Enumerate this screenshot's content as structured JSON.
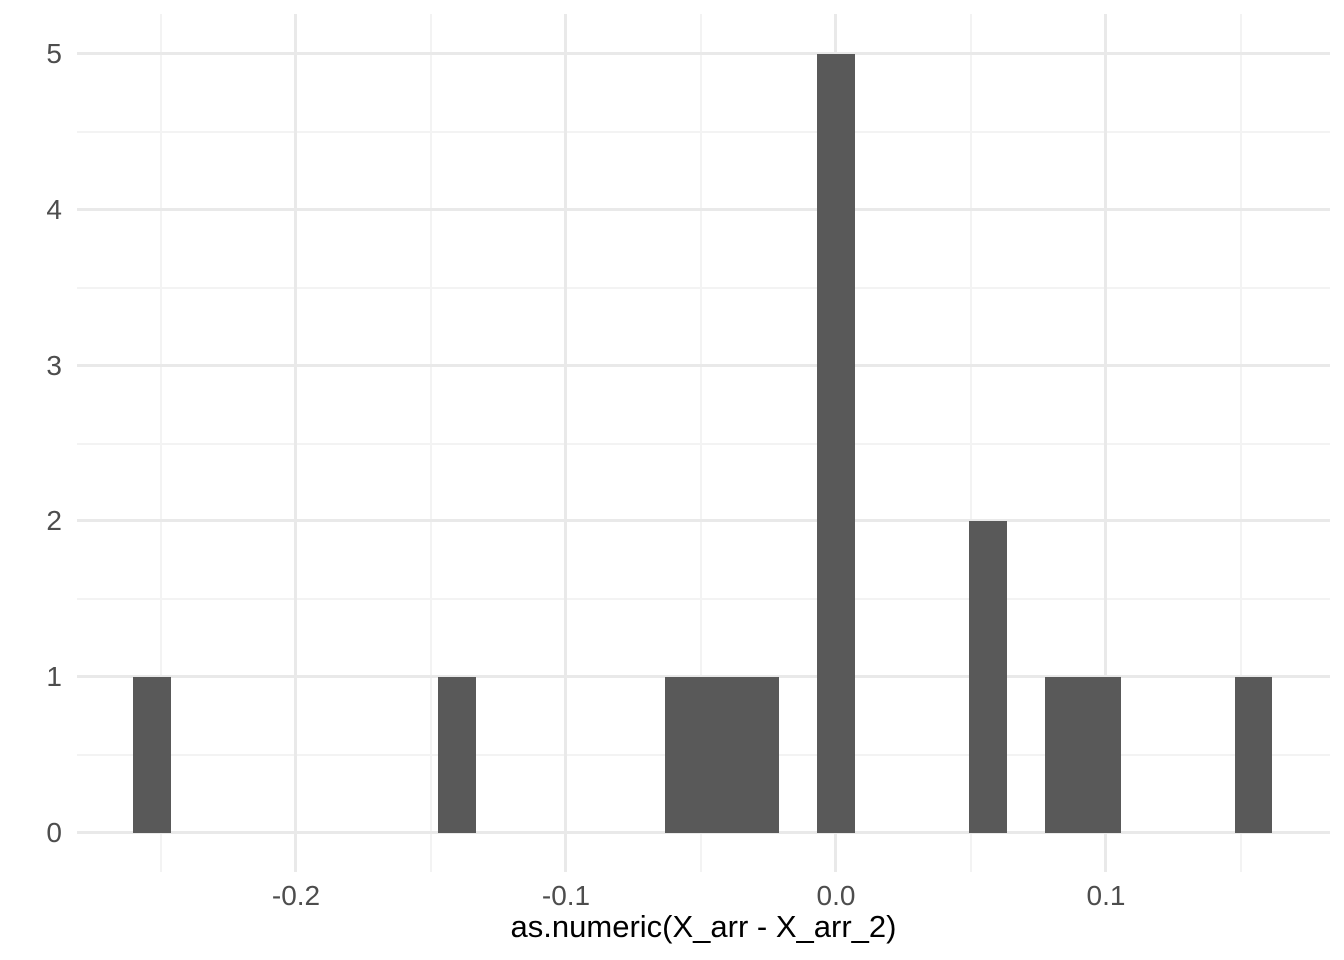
{
  "figure": {
    "background_color": "#FFFFFF",
    "bar_color": "#595959",
    "grid_major_color": "#E9E9E9",
    "grid_minor_color": "#F3F3F3",
    "tick_label_color": "#4D4D4D",
    "axis_title_color": "#000000"
  },
  "chart_data": {
    "type": "bar",
    "subtype": "histogram",
    "title": "",
    "xlabel": "as.numeric(X_arr - X_arr_2)",
    "ylabel": "",
    "xlim": [
      -0.2811,
      0.183
    ],
    "ylim": [
      -0.25,
      5.257
    ],
    "grid": "major and minor, no axis lines, no tick marks (theme_minimal)",
    "legend_position": "none",
    "binwidth": 0.0141,
    "total_observations": 15,
    "bins": [
      {
        "x0": -0.2604,
        "x1": -0.2463,
        "count": 1
      },
      {
        "x0": -0.1474,
        "x1": -0.1333,
        "count": 1
      },
      {
        "x0": -0.0633,
        "x1": -0.0492,
        "count": 1
      },
      {
        "x0": -0.0492,
        "x1": -0.0352,
        "count": 1
      },
      {
        "x0": -0.0352,
        "x1": -0.0211,
        "count": 1
      },
      {
        "x0": -0.007,
        "x1": 0.007,
        "count": 5
      },
      {
        "x0": 0.0493,
        "x1": 0.0633,
        "count": 2
      },
      {
        "x0": 0.0774,
        "x1": 0.0915,
        "count": 1
      },
      {
        "x0": 0.0915,
        "x1": 0.1056,
        "count": 1
      },
      {
        "x0": 0.1478,
        "x1": 0.1615,
        "count": 1
      }
    ],
    "x_ticks": [
      {
        "value": -0.2,
        "label": "-0.2"
      },
      {
        "value": -0.1,
        "label": "-0.1"
      },
      {
        "value": 0.0,
        "label": "0.0"
      },
      {
        "value": 0.1,
        "label": "0.1"
      }
    ],
    "x_minor_ticks": [
      -0.25,
      -0.15,
      -0.05,
      0.05,
      0.15
    ],
    "y_ticks": [
      {
        "value": 0,
        "label": "0"
      },
      {
        "value": 1,
        "label": "1"
      },
      {
        "value": 2,
        "label": "2"
      },
      {
        "value": 3,
        "label": "3"
      },
      {
        "value": 4,
        "label": "4"
      },
      {
        "value": 5,
        "label": "5"
      }
    ],
    "y_minor_ticks": [
      0.5,
      1.5,
      2.5,
      3.5,
      4.5
    ]
  }
}
